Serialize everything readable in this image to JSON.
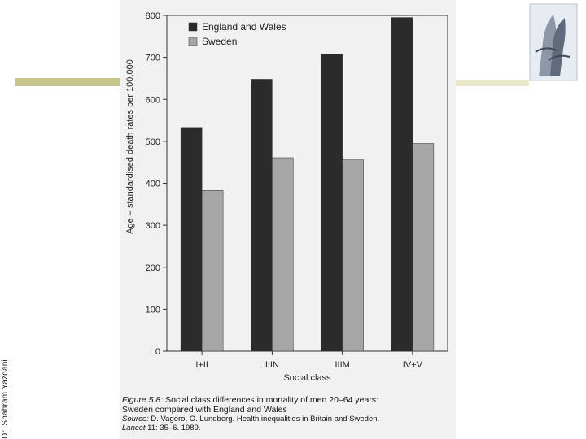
{
  "slide": {
    "author_vertical": "Dr. Shahram Yazdani",
    "logo_icon": "hands-prayer-logo-icon"
  },
  "caption": {
    "figure_label": "Figure 5.8:",
    "line1": "Social class differences in mortality of men 20–64 years:",
    "line2": "Sweden compared with England and Wales",
    "source_label": "Source:",
    "source_text": "D. Vagero, O. Lundberg. Health inequalities in Britain and Sweden.",
    "journal_label": "Lancet",
    "journal_text": "11: 35–6. 1989."
  },
  "chart_data": {
    "type": "bar",
    "title": "",
    "xlabel": "Social class",
    "ylabel": "Age – standardised death rates per 100,000",
    "categories": [
      "I+II",
      "IIIN",
      "IIIM",
      "IV+V"
    ],
    "series": [
      {
        "name": "England and Wales",
        "values": [
          533,
          648,
          708,
          795
        ],
        "color": "#2b2b2b"
      },
      {
        "name": "Sweden",
        "values": [
          383,
          461,
          456,
          495
        ],
        "color": "#a6a6a6"
      }
    ],
    "ylim": [
      0,
      800
    ],
    "yticks": [
      0,
      100,
      200,
      300,
      400,
      500,
      600,
      700,
      800
    ],
    "legend": "top-left",
    "grid": false
  }
}
